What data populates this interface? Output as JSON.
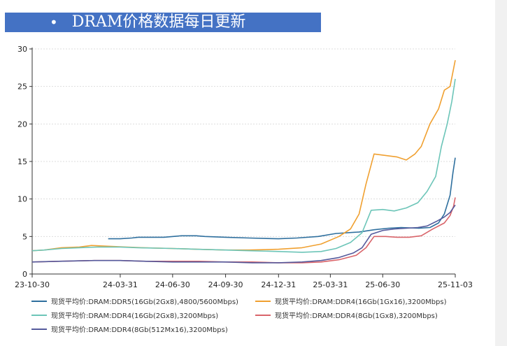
{
  "header": {
    "bullet": "•",
    "title": "DRAM价格数据每日更新"
  },
  "chart_data": {
    "type": "line",
    "title": "",
    "xlabel": "",
    "ylabel": "",
    "ylim": [
      0,
      30
    ],
    "yticks": [
      0,
      5,
      10,
      15,
      20,
      25,
      30
    ],
    "xlim": [
      "2023-10-30",
      "2025-11-03"
    ],
    "xticks": [
      {
        "date": "2023-10-30",
        "label": "23-10-30"
      },
      {
        "date": "2024-03-31",
        "label": "24-03-31"
      },
      {
        "date": "2024-06-30",
        "label": "24-06-30"
      },
      {
        "date": "2024-09-30",
        "label": "24-09-30"
      },
      {
        "date": "2024-12-31",
        "label": "24-12-31"
      },
      {
        "date": "2025-03-31",
        "label": "25-03-31"
      },
      {
        "date": "2025-06-30",
        "label": "25-06-30"
      },
      {
        "date": "2025-11-03",
        "label": "25-11-03"
      }
    ],
    "grid": true,
    "legend_position": "bottom",
    "series": [
      {
        "name": "现货平均价:DRAM:DDR5(16Gb(2Gx8),4800/5600Mbps)",
        "color": "#2e6f9e",
        "points": [
          [
            "2024-03-10",
            4.7
          ],
          [
            "2024-03-31",
            4.7
          ],
          [
            "2024-04-20",
            4.8
          ],
          [
            "2024-05-01",
            4.9
          ],
          [
            "2024-06-15",
            4.9
          ],
          [
            "2024-07-15",
            5.1
          ],
          [
            "2024-08-10",
            5.1
          ],
          [
            "2024-08-25",
            5.0
          ],
          [
            "2024-09-30",
            4.9
          ],
          [
            "2024-11-10",
            4.8
          ],
          [
            "2024-12-31",
            4.7
          ],
          [
            "2025-02-01",
            4.8
          ],
          [
            "2025-03-10",
            5.0
          ],
          [
            "2025-04-10",
            5.4
          ],
          [
            "2025-05-20",
            5.6
          ],
          [
            "2025-06-15",
            5.9
          ],
          [
            "2025-07-10",
            6.1
          ],
          [
            "2025-08-01",
            6.2
          ],
          [
            "2025-09-01",
            6.1
          ],
          [
            "2025-09-20",
            6.2
          ],
          [
            "2025-10-05",
            6.8
          ],
          [
            "2025-10-15",
            8.0
          ],
          [
            "2025-10-25",
            10.5
          ],
          [
            "2025-10-30",
            13.5
          ],
          [
            "2025-11-03",
            15.5
          ]
        ]
      },
      {
        "name": "现货平均价:DRAM:DDR4(16Gb(1Gx16),3200Mbps)",
        "color": "#f0a030",
        "points": [
          [
            "2023-10-30",
            3.1
          ],
          [
            "2023-11-20",
            3.2
          ],
          [
            "2023-12-20",
            3.5
          ],
          [
            "2024-01-20",
            3.6
          ],
          [
            "2024-02-10",
            3.8
          ],
          [
            "2024-03-10",
            3.7
          ],
          [
            "2024-04-10",
            3.6
          ],
          [
            "2024-05-10",
            3.5
          ],
          [
            "2024-06-30",
            3.4
          ],
          [
            "2024-08-10",
            3.3
          ],
          [
            "2024-09-30",
            3.2
          ],
          [
            "2024-11-10",
            3.2
          ],
          [
            "2024-12-31",
            3.3
          ],
          [
            "2025-02-10",
            3.5
          ],
          [
            "2025-03-15",
            4.0
          ],
          [
            "2025-04-15",
            5.0
          ],
          [
            "2025-05-05",
            6.0
          ],
          [
            "2025-05-20",
            8.0
          ],
          [
            "2025-06-01",
            12.0
          ],
          [
            "2025-06-15",
            16.0
          ],
          [
            "2025-07-05",
            15.8
          ],
          [
            "2025-07-25",
            15.6
          ],
          [
            "2025-08-10",
            15.2
          ],
          [
            "2025-08-25",
            16.0
          ],
          [
            "2025-09-05",
            17.0
          ],
          [
            "2025-09-20",
            20.0
          ],
          [
            "2025-10-05",
            22.0
          ],
          [
            "2025-10-15",
            24.5
          ],
          [
            "2025-10-25",
            25.0
          ],
          [
            "2025-11-03",
            28.5
          ]
        ]
      },
      {
        "name": "现货平均价:DRAM:DDR4(16Gb(2Gx8),3200Mbps)",
        "color": "#6cc5b8",
        "points": [
          [
            "2023-10-30",
            3.1
          ],
          [
            "2023-11-20",
            3.2
          ],
          [
            "2023-12-20",
            3.4
          ],
          [
            "2024-01-20",
            3.5
          ],
          [
            "2024-02-20",
            3.6
          ],
          [
            "2024-03-31",
            3.6
          ],
          [
            "2024-05-01",
            3.5
          ],
          [
            "2024-06-30",
            3.4
          ],
          [
            "2024-08-10",
            3.3
          ],
          [
            "2024-09-30",
            3.2
          ],
          [
            "2024-11-10",
            3.1
          ],
          [
            "2024-12-31",
            3.0
          ],
          [
            "2025-02-10",
            2.9
          ],
          [
            "2025-03-15",
            3.0
          ],
          [
            "2025-04-10",
            3.4
          ],
          [
            "2025-05-05",
            4.2
          ],
          [
            "2025-05-25",
            5.5
          ],
          [
            "2025-06-10",
            8.5
          ],
          [
            "2025-06-30",
            8.6
          ],
          [
            "2025-07-20",
            8.4
          ],
          [
            "2025-08-10",
            8.8
          ],
          [
            "2025-08-30",
            9.5
          ],
          [
            "2025-09-15",
            11.0
          ],
          [
            "2025-09-30",
            13.0
          ],
          [
            "2025-10-10",
            17.0
          ],
          [
            "2025-10-20",
            20.0
          ],
          [
            "2025-10-28",
            23.0
          ],
          [
            "2025-11-03",
            26.0
          ]
        ]
      },
      {
        "name": "现货平均价:DRAM:DDR4(8Gb(1Gx8),3200Mbps)",
        "color": "#d9646a",
        "points": [
          [
            "2023-10-30",
            1.6
          ],
          [
            "2023-12-15",
            1.7
          ],
          [
            "2024-02-15",
            1.8
          ],
          [
            "2024-03-31",
            1.8
          ],
          [
            "2024-05-15",
            1.7
          ],
          [
            "2024-06-30",
            1.7
          ],
          [
            "2024-08-15",
            1.7
          ],
          [
            "2024-09-30",
            1.6
          ],
          [
            "2024-11-15",
            1.6
          ],
          [
            "2024-12-31",
            1.5
          ],
          [
            "2025-02-10",
            1.5
          ],
          [
            "2025-03-15",
            1.6
          ],
          [
            "2025-04-15",
            1.9
          ],
          [
            "2025-05-15",
            2.5
          ],
          [
            "2025-06-01",
            3.5
          ],
          [
            "2025-06-15",
            5.0
          ],
          [
            "2025-07-05",
            5.0
          ],
          [
            "2025-07-25",
            4.9
          ],
          [
            "2025-08-15",
            4.9
          ],
          [
            "2025-09-05",
            5.1
          ],
          [
            "2025-09-25",
            6.0
          ],
          [
            "2025-10-15",
            6.8
          ],
          [
            "2025-10-25",
            7.8
          ],
          [
            "2025-10-31",
            9.0
          ],
          [
            "2025-11-03",
            10.2
          ]
        ]
      },
      {
        "name": "现货平均价:DRAM:DDR4(8Gb(512Mx16),3200Mbps)",
        "color": "#555a9c",
        "points": [
          [
            "2023-10-30",
            1.6
          ],
          [
            "2023-12-15",
            1.7
          ],
          [
            "2024-02-15",
            1.8
          ],
          [
            "2024-03-31",
            1.8
          ],
          [
            "2024-05-15",
            1.7
          ],
          [
            "2024-06-30",
            1.6
          ],
          [
            "2024-08-15",
            1.6
          ],
          [
            "2024-09-30",
            1.6
          ],
          [
            "2024-11-15",
            1.5
          ],
          [
            "2024-12-31",
            1.5
          ],
          [
            "2025-02-10",
            1.6
          ],
          [
            "2025-03-15",
            1.8
          ],
          [
            "2025-04-15",
            2.2
          ],
          [
            "2025-05-10",
            2.8
          ],
          [
            "2025-05-25",
            3.5
          ],
          [
            "2025-06-10",
            5.3
          ],
          [
            "2025-06-30",
            5.8
          ],
          [
            "2025-07-20",
            6.0
          ],
          [
            "2025-08-10",
            6.1
          ],
          [
            "2025-08-30",
            6.2
          ],
          [
            "2025-09-15",
            6.4
          ],
          [
            "2025-10-01",
            7.0
          ],
          [
            "2025-10-15",
            7.6
          ],
          [
            "2025-10-25",
            8.2
          ],
          [
            "2025-11-03",
            9.2
          ]
        ]
      }
    ]
  }
}
